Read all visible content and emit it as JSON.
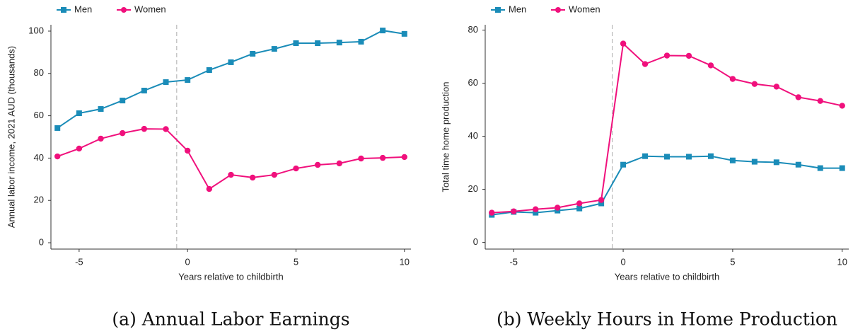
{
  "chart_data": [
    {
      "type": "line",
      "caption": "(a) Annual Labor Earnings",
      "xlabel": "Years relative to childbirth",
      "ylabel": "Annual labor income, 2021 AUD (thousands)",
      "x": [
        -6,
        -5,
        -4,
        -3,
        -2,
        -1,
        0,
        1,
        2,
        3,
        4,
        5,
        6,
        7,
        8,
        9,
        10
      ],
      "series": [
        {
          "name": "Men",
          "color": "#1a8cb8",
          "marker": "square",
          "values": [
            54.2,
            61.2,
            63.2,
            67.2,
            71.9,
            75.9,
            76.9,
            81.6,
            85.3,
            89.3,
            91.6,
            94.3,
            94.3,
            94.6,
            95,
            100.3,
            98.7
          ]
        },
        {
          "name": "Women",
          "color": "#f0107c",
          "marker": "circle",
          "values": [
            40.8,
            44.5,
            49.2,
            51.8,
            53.8,
            53.7,
            43.5,
            25.4,
            32.1,
            30.8,
            32.1,
            35.1,
            36.8,
            37.5,
            39.8,
            40.1,
            40.5
          ]
        }
      ],
      "xlim": [
        -6.3,
        10.3
      ],
      "xticks": [
        -5,
        0,
        5,
        10
      ],
      "ylim": [
        -3,
        103
      ],
      "yticks": [
        0,
        20,
        40,
        60,
        80,
        100
      ],
      "reference_line": -0.5
    },
    {
      "type": "line",
      "caption": "(b) Weekly Hours in Home Production",
      "xlabel": "Years relative to childbirth",
      "ylabel": "Total time home production",
      "x": [
        -6,
        -5,
        -4,
        -3,
        -2,
        -1,
        0,
        1,
        2,
        3,
        4,
        5,
        6,
        7,
        8,
        9,
        10
      ],
      "series": [
        {
          "name": "Men",
          "color": "#1a8cb8",
          "marker": "square",
          "values": [
            10.4,
            11.5,
            11.2,
            12,
            12.8,
            14.7,
            29.3,
            32.5,
            32.3,
            32.3,
            32.5,
            30.9,
            30.4,
            30.2,
            29.3,
            28,
            28
          ]
        },
        {
          "name": "Women",
          "color": "#f0107c",
          "marker": "circle",
          "values": [
            11.2,
            11.7,
            12.5,
            13.1,
            14.7,
            16,
            74.9,
            67.2,
            70.4,
            70.3,
            66.7,
            61.6,
            59.7,
            58.7,
            54.7,
            53.3,
            51.5
          ]
        }
      ],
      "xlim": [
        -6.3,
        10.3
      ],
      "xticks": [
        -5,
        0,
        5,
        10
      ],
      "ylim": [
        -2.5,
        82
      ],
      "yticks": [
        0,
        20,
        40,
        60,
        80
      ],
      "reference_line": -0.5
    }
  ]
}
